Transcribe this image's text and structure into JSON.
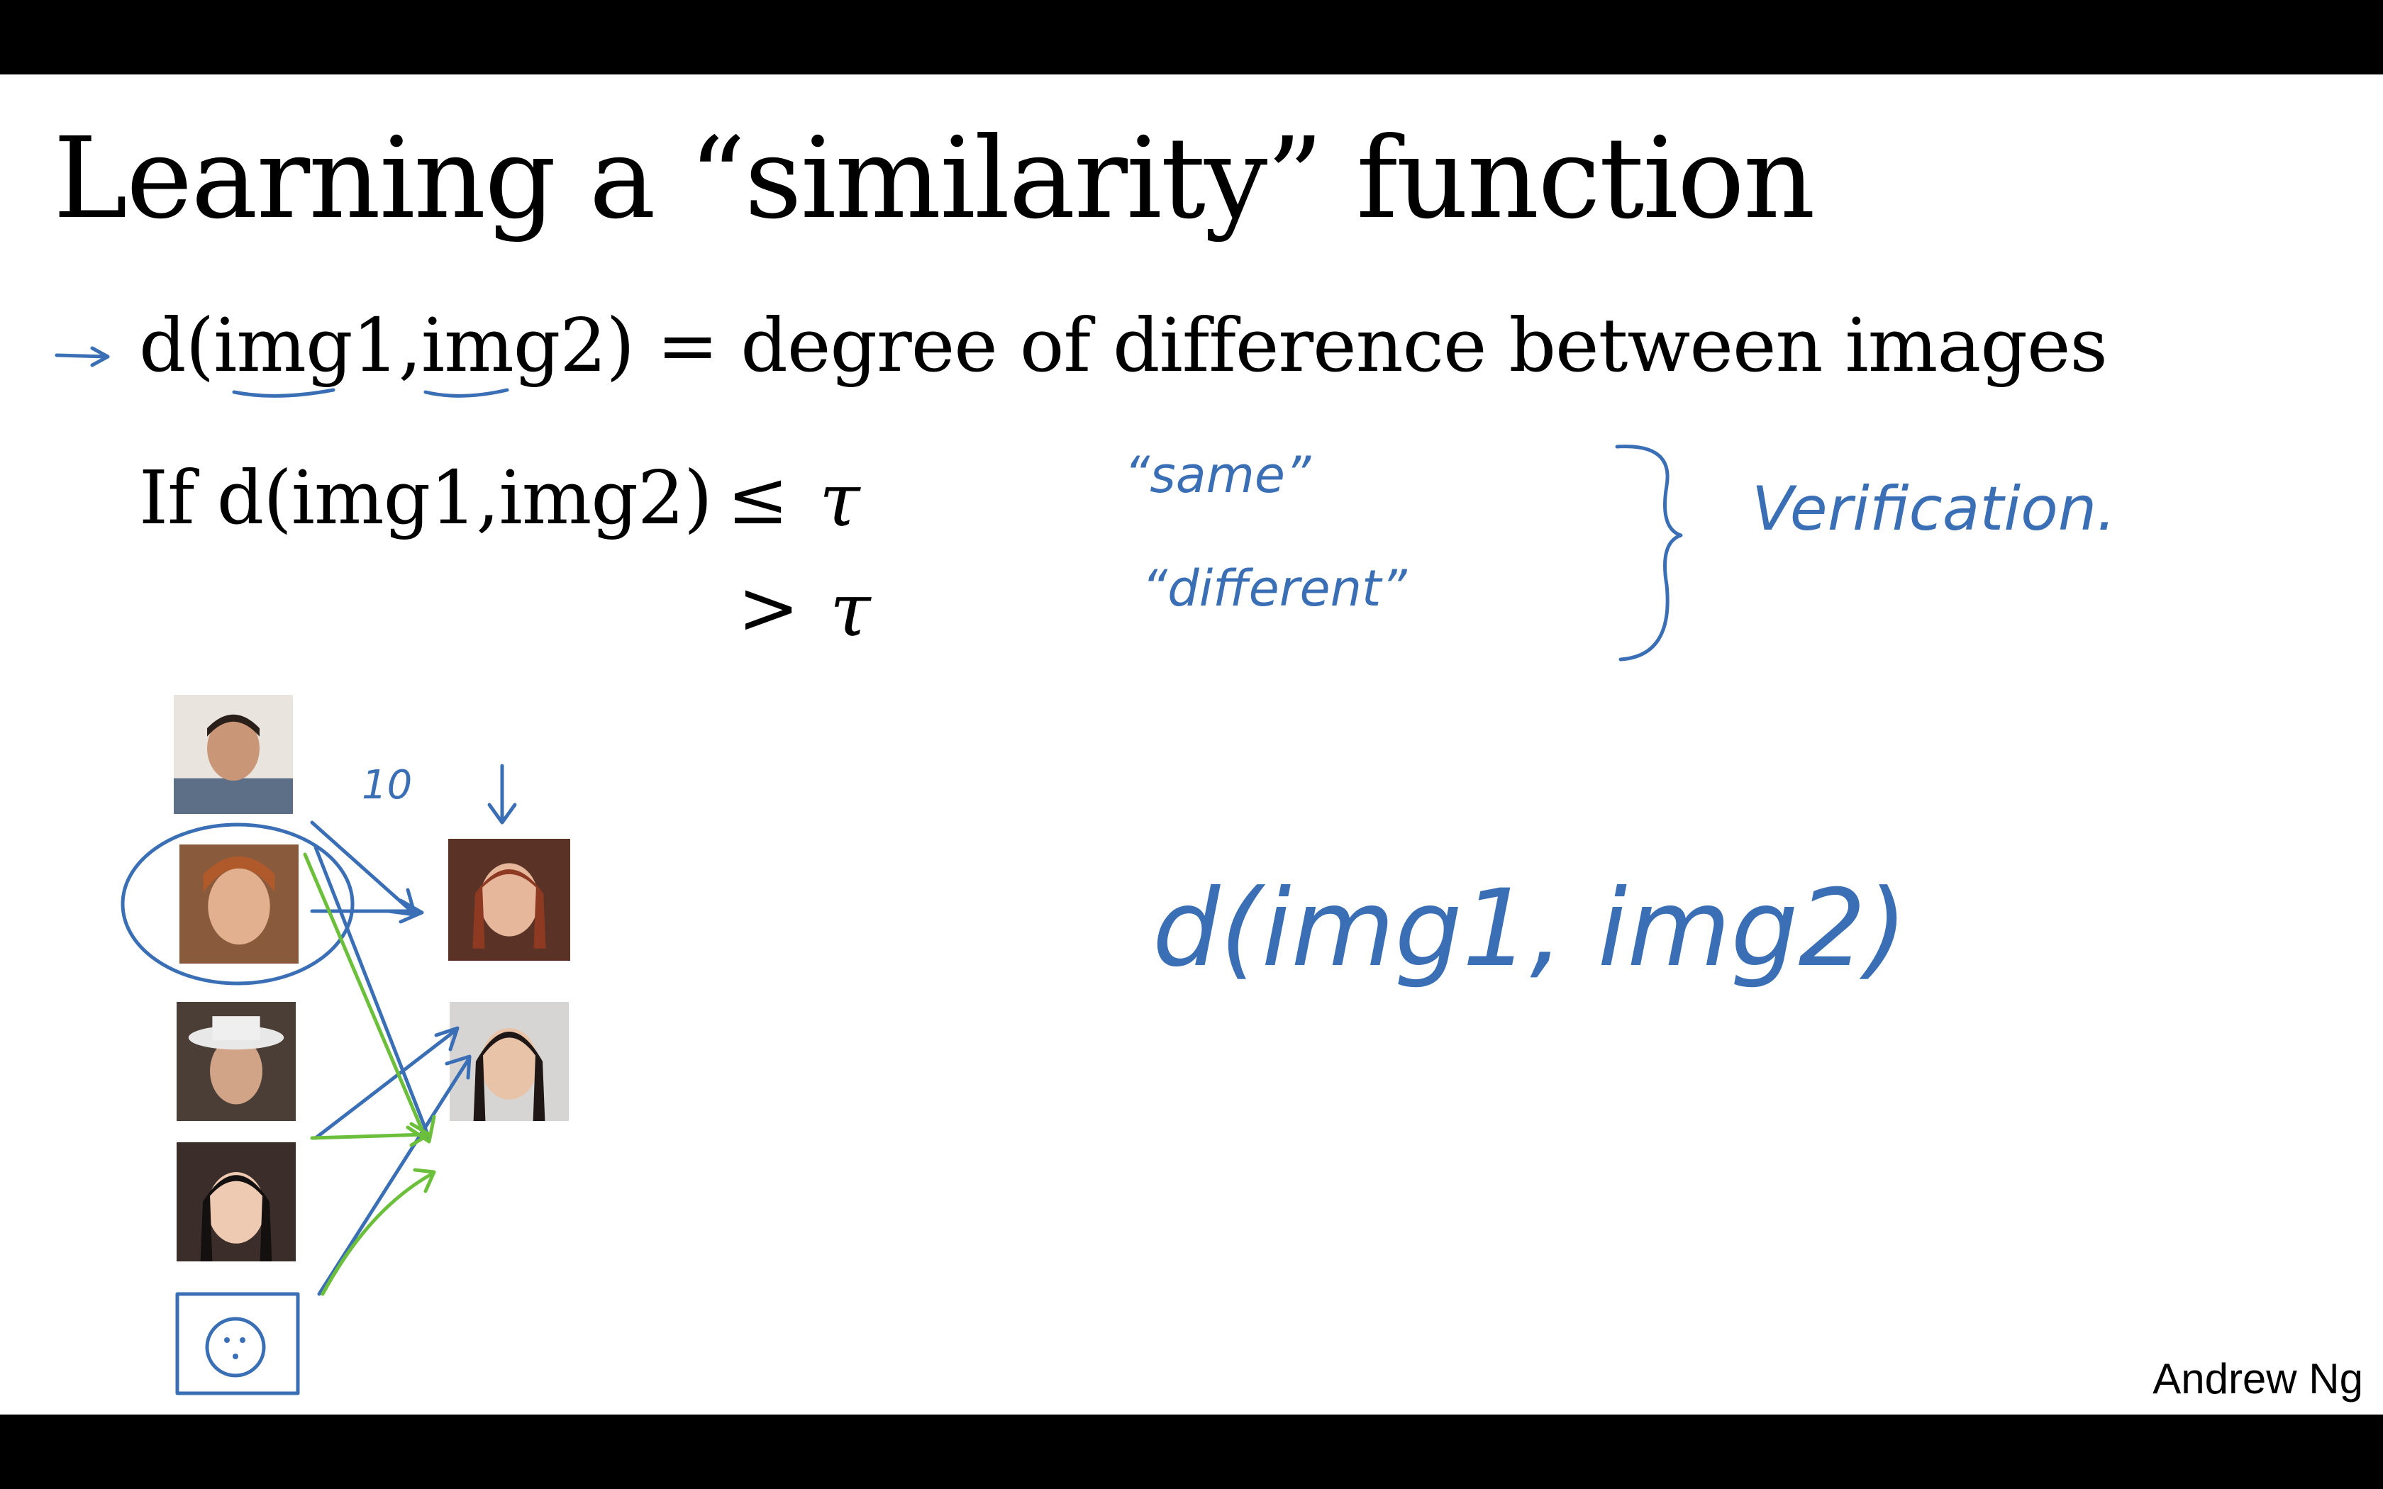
{
  "slide": {
    "title": "Learning a “similarity” function",
    "line1": "d(img1,img2) = degree of difference between images",
    "condition": "If d(img1,img2)",
    "le": "≤",
    "gt": ">",
    "tau": "τ",
    "author": "Andrew Ng"
  },
  "annotations": {
    "same": "“same”",
    "different": "“different”",
    "verification": "Verification.",
    "d_expr": "d(img1, img2)",
    "ten": "10"
  },
  "controls": [
    "‹",
    "›",
    "✎",
    "▤",
    "⌕",
    "⋯"
  ],
  "colors": {
    "ink_blue": "#3a6fb5",
    "ink_green": "#6cbf3a",
    "background": "#ffffff"
  }
}
